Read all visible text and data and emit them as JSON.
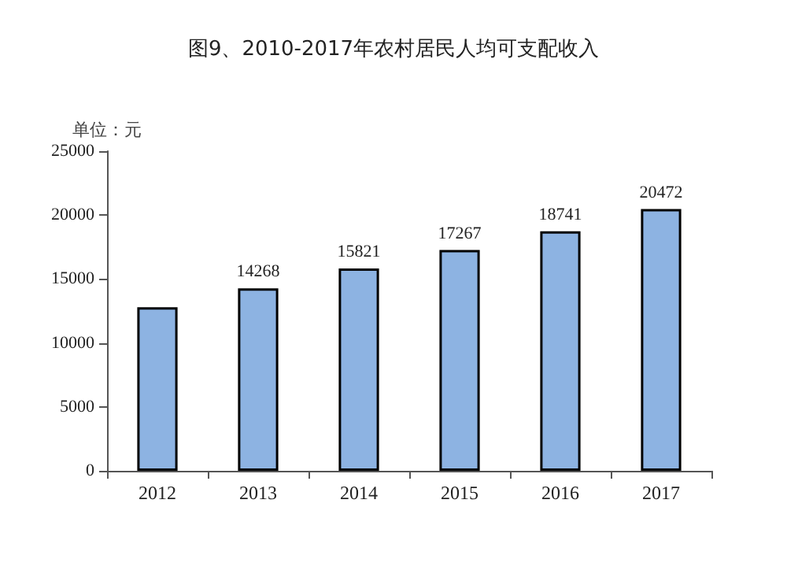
{
  "chart_data": {
    "type": "bar",
    "title": "图9、2010-2017年农村居民人均可支配收入",
    "ylabel": "单位：元",
    "categories": [
      "2012",
      "2013",
      "2014",
      "2015",
      "2016",
      "2017"
    ],
    "values": [
      12800,
      14268,
      15821,
      17267,
      18741,
      20472
    ],
    "value_labels": [
      null,
      "14268",
      "15821",
      "17267",
      "18741",
      "20472"
    ],
    "color": "#8db3e2",
    "ylim": [
      0,
      25000
    ],
    "yticks": [
      0,
      5000,
      10000,
      15000,
      20000,
      25000
    ],
    "grid": false
  }
}
